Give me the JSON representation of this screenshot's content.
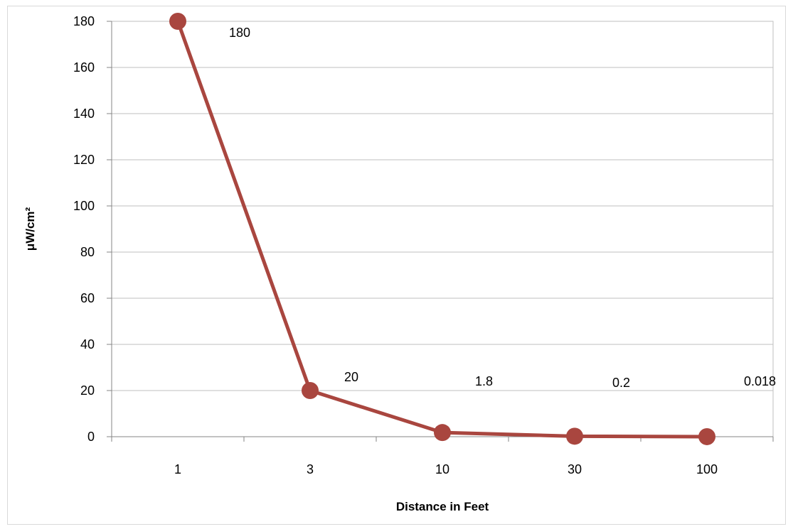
{
  "chart_data": {
    "type": "line",
    "title": "",
    "xlabel": "Distance in Feet",
    "ylabel": "μW/cm²",
    "categories": [
      "1",
      "3",
      "10",
      "30",
      "100"
    ],
    "series": [
      {
        "values": [
          180,
          20,
          1.8,
          0.2,
          0.018
        ],
        "color": "#a9463f"
      }
    ],
    "data_labels": [
      "180",
      "20",
      "1.8",
      "0.2",
      "0.018"
    ],
    "yticks": [
      0,
      20,
      40,
      60,
      80,
      100,
      120,
      140,
      160,
      180
    ],
    "ylim": [
      0,
      180
    ],
    "grid": true,
    "legend": "none"
  }
}
